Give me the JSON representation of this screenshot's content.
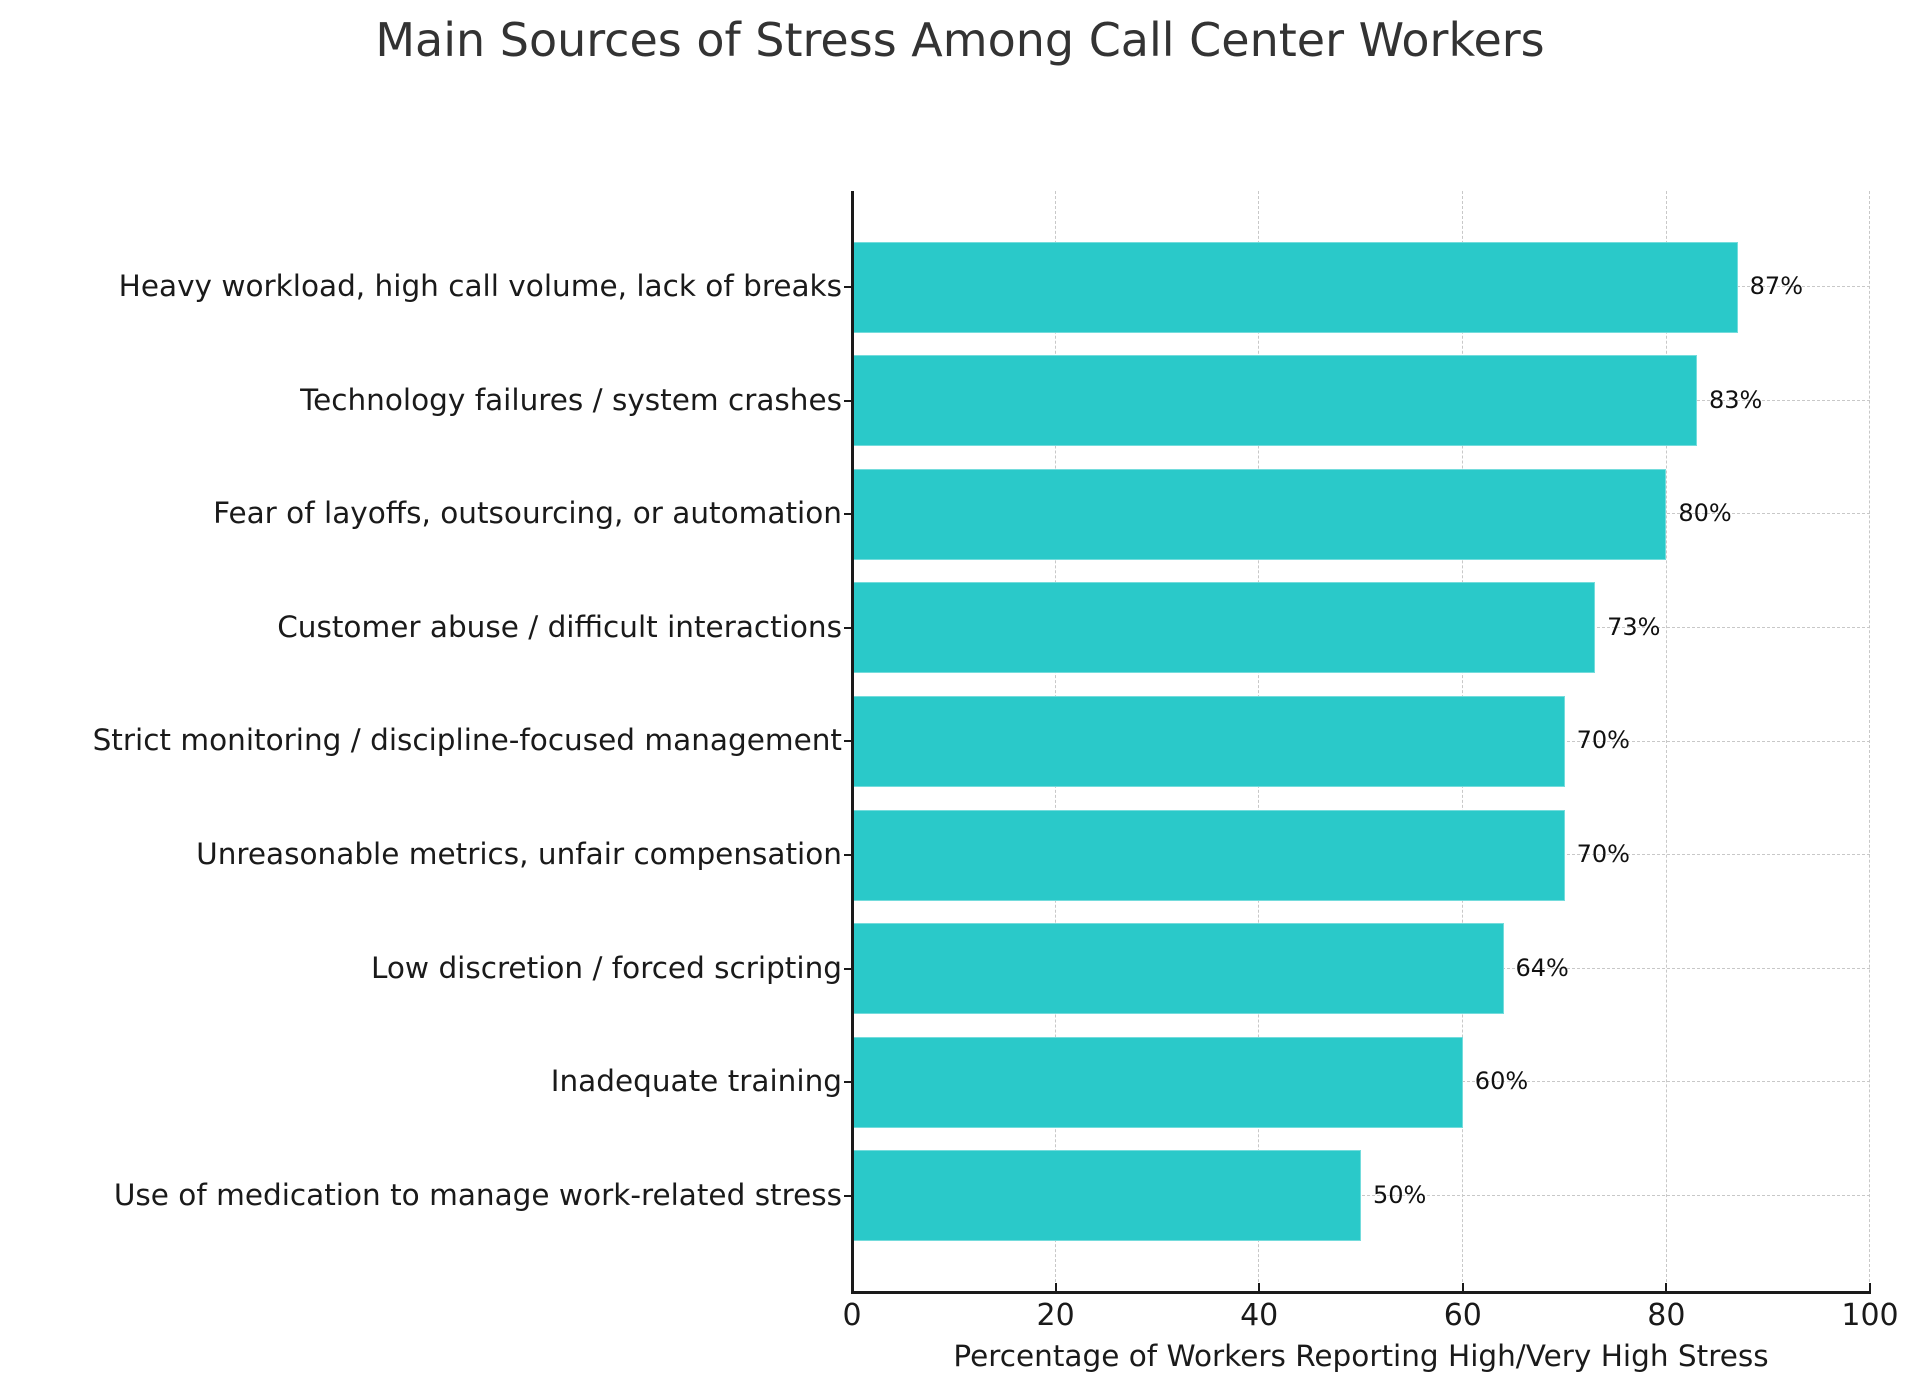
{
  "chart_data": {
    "type": "bar",
    "orientation": "horizontal",
    "title": "Main Sources of Stress Among Call Center Workers",
    "xlabel": "Percentage of Workers Reporting High/Very High Stress",
    "ylabel": "",
    "xlim": [
      0,
      100
    ],
    "xticks": [
      "0",
      "20",
      "40",
      "60",
      "80",
      "100"
    ],
    "grid": true,
    "legend": null,
    "bar_color": "#2ac9c9",
    "categories": [
      "Heavy workload, high call volume, lack of breaks",
      "Technology failures / system crashes",
      "Fear of layoffs, outsourcing, or automation",
      "Customer abuse / difficult interactions",
      "Strict monitoring / discipline-focused management",
      "Unreasonable metrics, unfair compensation",
      "Low discretion / forced scripting",
      "Inadequate training",
      "Use of medication to manage work-related stress"
    ],
    "values": [
      87,
      83,
      80,
      73,
      70,
      70,
      64,
      60,
      50
    ],
    "value_labels": [
      "87%",
      "83%",
      "80%",
      "73%",
      "70%",
      "70%",
      "64%",
      "60%",
      "50%"
    ]
  }
}
